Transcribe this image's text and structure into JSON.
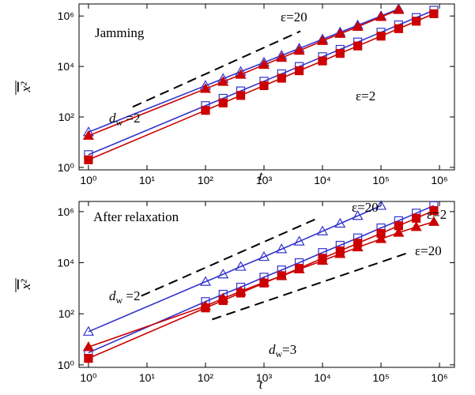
{
  "chart_data": [
    {
      "type": "line",
      "xscale": "log",
      "yscale": "log",
      "xlabel": "t",
      "ylabel": "x²",
      "xlim": [
        0.69,
        1800000
      ],
      "ylim": [
        0.8,
        3000000
      ],
      "xticks": [
        {
          "value": 1,
          "label": "10⁰"
        },
        {
          "value": 10,
          "label": "10¹"
        },
        {
          "value": 100,
          "label": "10²"
        },
        {
          "value": 1000,
          "label": "10³"
        },
        {
          "value": 10000,
          "label": "10⁴"
        },
        {
          "value": 100000,
          "label": "10⁵"
        },
        {
          "value": 1000000,
          "label": "10⁶"
        }
      ],
      "yticks": [
        {
          "value": 1,
          "label": "10⁰"
        },
        {
          "value": 100,
          "label": "10²"
        },
        {
          "value": 10000,
          "label": "10⁴"
        },
        {
          "value": 1000000,
          "label": "10⁶"
        }
      ],
      "series": [
        {
          "color": "#3333cc",
          "marker": "triangle",
          "filled": false,
          "x": [
            1,
            100,
            200,
            400,
            1000,
            2000,
            4000,
            10000,
            20000,
            40000,
            100000,
            200000
          ],
          "values": [
            25,
            1730,
            3270,
            6200,
            14400,
            27200,
            51500,
            120000,
            226000,
            430000,
            1000000,
            1900000
          ]
        },
        {
          "color": "#cc0000",
          "marker": "triangle",
          "filled": true,
          "x": [
            1,
            100,
            200,
            400,
            1000,
            2000,
            4000,
            10000,
            20000,
            40000,
            100000,
            200000
          ],
          "values": [
            18,
            1300,
            2480,
            4730,
            11600,
            22100,
            42200,
            103000,
            197000,
            375000,
            918000,
            1750000
          ]
        },
        {
          "color": "#3333cc",
          "marker": "square",
          "filled": false,
          "x": [
            1,
            100,
            200,
            400,
            1000,
            2000,
            4000,
            10000,
            20000,
            40000,
            100000,
            200000,
            400000,
            800000
          ],
          "values": [
            3.2,
            280,
            545,
            1070,
            2600,
            5090,
            9950,
            24300,
            47500,
            92900,
            227000,
            443000,
            866000,
            1690000
          ]
        },
        {
          "color": "#cc0000",
          "marker": "square",
          "filled": true,
          "x": [
            1,
            100,
            200,
            400,
            1000,
            2000,
            4000,
            10000,
            20000,
            40000,
            100000,
            200000,
            400000,
            800000
          ],
          "values": [
            2,
            182,
            359,
            710,
            1740,
            3430,
            6780,
            16600,
            32900,
            64900,
            159000,
            315000,
            621000,
            1230000
          ]
        }
      ],
      "guides": [
        {
          "x": [
            5.7,
            4200
          ],
          "y": [
            250,
            250000
          ]
        }
      ],
      "annotations": [
        {
          "text": "Jamming"
        },
        {
          "text": "ε=20"
        },
        {
          "text": "ε=2"
        },
        {
          "text": "d",
          "sub": "w",
          "tail": " =2"
        }
      ]
    },
    {
      "type": "line",
      "xscale": "log",
      "yscale": "log",
      "xlabel": "t",
      "ylabel": "x²",
      "xlim": [
        0.69,
        1800000
      ],
      "ylim": [
        0.8,
        2500000
      ],
      "xticks": [
        {
          "value": 1,
          "label": "10⁰"
        },
        {
          "value": 10,
          "label": "10¹"
        },
        {
          "value": 100,
          "label": "10²"
        },
        {
          "value": 1000,
          "label": "10³"
        },
        {
          "value": 10000,
          "label": "10⁴"
        },
        {
          "value": 100000,
          "label": "10⁵"
        },
        {
          "value": 1000000,
          "label": "10⁶"
        }
      ],
      "yticks": [
        {
          "value": 1,
          "label": "10⁰"
        },
        {
          "value": 100,
          "label": "10²"
        },
        {
          "value": 10000,
          "label": "10⁴"
        },
        {
          "value": 1000000,
          "label": "10⁶"
        }
      ],
      "series": [
        {
          "color": "#3333cc",
          "marker": "triangle",
          "filled": false,
          "x": [
            1,
            100,
            200,
            400,
            1000,
            2000,
            4000,
            10000,
            20000,
            40000,
            100000
          ],
          "values": [
            20,
            1800,
            3500,
            7000,
            17000,
            34000,
            68000,
            170000,
            340000,
            680000,
            1700000
          ]
        },
        {
          "color": "#3333cc",
          "marker": "square",
          "filled": false,
          "x": [
            1,
            100,
            200,
            400,
            1000,
            2000,
            4000,
            10000,
            20000,
            40000,
            100000,
            200000,
            400000,
            800000
          ],
          "values": [
            3,
            300,
            580,
            1100,
            2700,
            5200,
            10000,
            25000,
            48000,
            93000,
            230000,
            440000,
            870000,
            1700000
          ]
        },
        {
          "color": "#cc0000",
          "marker": "square",
          "filled": true,
          "x": [
            1,
            100,
            200,
            400,
            1000,
            2000,
            4000,
            10000,
            20000,
            40000,
            100000,
            200000,
            400000,
            800000
          ],
          "values": [
            1.8,
            170,
            330,
            650,
            1600,
            3100,
            6000,
            15000,
            29000,
            58000,
            140000,
            280000,
            550000,
            1100000
          ]
        },
        {
          "color": "#cc0000",
          "marker": "triangle",
          "filled": true,
          "x": [
            1,
            100,
            200,
            400,
            1000,
            2000,
            4000,
            10000,
            20000,
            40000,
            100000,
            200000,
            400000,
            800000
          ],
          "values": [
            5,
            200,
            400,
            750,
            1700,
            3000,
            5500,
            12000,
            22000,
            40000,
            85000,
            150000,
            250000,
            400000
          ]
        }
      ],
      "guides": [
        {
          "x": [
            8,
            9000
          ],
          "y": [
            500,
            600000
          ]
        },
        {
          "x": [
            130,
            300000
          ],
          "y": [
            60,
            25000
          ]
        }
      ],
      "annotations": [
        {
          "text": "After relaxation"
        },
        {
          "text": "ε=20"
        },
        {
          "text": "ε=2"
        },
        {
          "text": "ε=20"
        },
        {
          "text": "d",
          "sub": "w",
          "tail": " =2"
        },
        {
          "text": "d",
          "sub": "w",
          "tail": "=3"
        }
      ]
    }
  ]
}
